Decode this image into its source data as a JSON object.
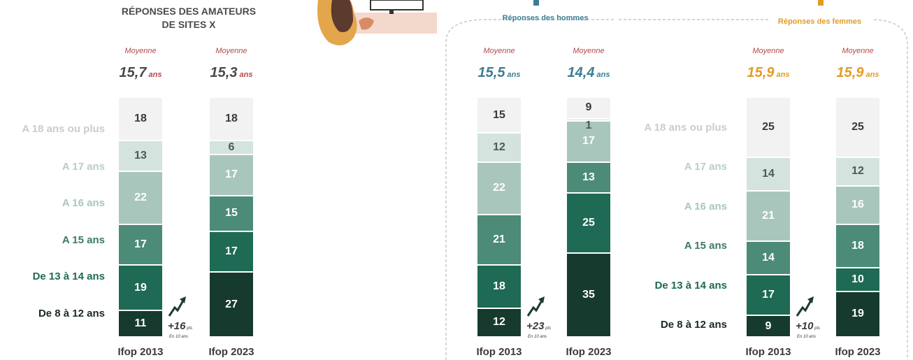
{
  "panels": {
    "amateurs": {
      "title_line1": "RÉPONSES DES AMATEURS",
      "title_line2": "DE SITES X"
    },
    "men": {
      "title": "Réponses des hommes"
    },
    "women": {
      "title": "Réponses des femmes"
    }
  },
  "labels": {
    "moyenne": "Moyenne",
    "ans": "ans",
    "pts": "pts",
    "en10ans": "En 10 ans"
  },
  "categories": [
    "De 8 à 12 ans",
    "De 13 à 14 ans",
    "A 15 ans",
    "A 16 ans",
    "A 17 ans",
    "A 18 ans ou plus"
  ],
  "category_colors": [
    "#163a2e",
    "#1e6a54",
    "#4c8b78",
    "#a9c6bd",
    "#d4e3de",
    "#f2f2f2"
  ],
  "chart_data": [
    {
      "type": "bar",
      "stacked": true,
      "title": "RÉPONSES DES AMATEURS DE SITES X",
      "categories": [
        "Ifop 2013",
        "Ifop 2023"
      ],
      "averages": [
        "15,7",
        "15,3"
      ],
      "delta": "+16",
      "series": [
        {
          "name": "De 8 à 12 ans",
          "values": [
            11,
            27
          ]
        },
        {
          "name": "De 13 à 14 ans",
          "values": [
            19,
            17
          ]
        },
        {
          "name": "A 15 ans",
          "values": [
            17,
            15
          ]
        },
        {
          "name": "A 16 ans",
          "values": [
            22,
            17
          ]
        },
        {
          "name": "A 17 ans",
          "values": [
            13,
            6
          ]
        },
        {
          "name": "A 18 ans ou plus",
          "values": [
            18,
            18
          ]
        }
      ]
    },
    {
      "type": "bar",
      "stacked": true,
      "title": "Réponses des hommes",
      "categories": [
        "Ifop 2013",
        "Ifop 2023"
      ],
      "averages": [
        "15,5",
        "14,4"
      ],
      "delta": "+23",
      "series": [
        {
          "name": "De 8 à 12 ans",
          "values": [
            12,
            35
          ]
        },
        {
          "name": "De 13 à 14 ans",
          "values": [
            18,
            25
          ]
        },
        {
          "name": "A 15 ans",
          "values": [
            21,
            13
          ]
        },
        {
          "name": "A 16 ans",
          "values": [
            22,
            17
          ]
        },
        {
          "name": "A 17 ans",
          "values": [
            12,
            1
          ]
        },
        {
          "name": "A 18 ans ou plus",
          "values": [
            15,
            9
          ]
        }
      ]
    },
    {
      "type": "bar",
      "stacked": true,
      "title": "Réponses des femmes",
      "categories": [
        "Ifop 2013",
        "Ifop 2023"
      ],
      "averages": [
        "15,9",
        "15,9"
      ],
      "delta": "+10",
      "series": [
        {
          "name": "De 8 à 12 ans",
          "values": [
            9,
            19
          ]
        },
        {
          "name": "De 13 à 14 ans",
          "values": [
            17,
            10
          ]
        },
        {
          "name": "A 15 ans",
          "values": [
            14,
            18
          ]
        },
        {
          "name": "A 16 ans",
          "values": [
            21,
            16
          ]
        },
        {
          "name": "A 17 ans",
          "values": [
            14,
            12
          ]
        },
        {
          "name": "A 18 ans ou plus",
          "values": [
            25,
            25
          ]
        }
      ]
    }
  ]
}
